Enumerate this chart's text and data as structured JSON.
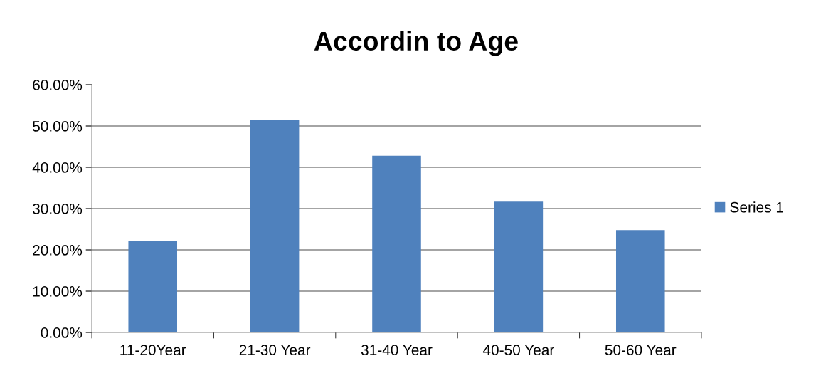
{
  "chart_data": {
    "type": "bar",
    "title": "Accordin to Age",
    "categories": [
      "11-20Year",
      "21-30 Year",
      "31-40 Year",
      "40-50 Year",
      "50-60 Year"
    ],
    "series": [
      {
        "name": "Series 1",
        "color": "#4f81bd",
        "values": [
          22.1,
          51.4,
          42.8,
          31.7,
          24.8
        ]
      }
    ],
    "ylim": [
      0,
      60
    ],
    "yticks": [
      {
        "value": 0,
        "label": "0.00%"
      },
      {
        "value": 10,
        "label": "10.00%"
      },
      {
        "value": 20,
        "label": "20.00%"
      },
      {
        "value": 30,
        "label": "30.00%"
      },
      {
        "value": 40,
        "label": "40.00%"
      },
      {
        "value": 50,
        "label": "50.00%"
      },
      {
        "value": 60,
        "label": "60.00%"
      }
    ],
    "grid": "y",
    "legend": "right"
  }
}
